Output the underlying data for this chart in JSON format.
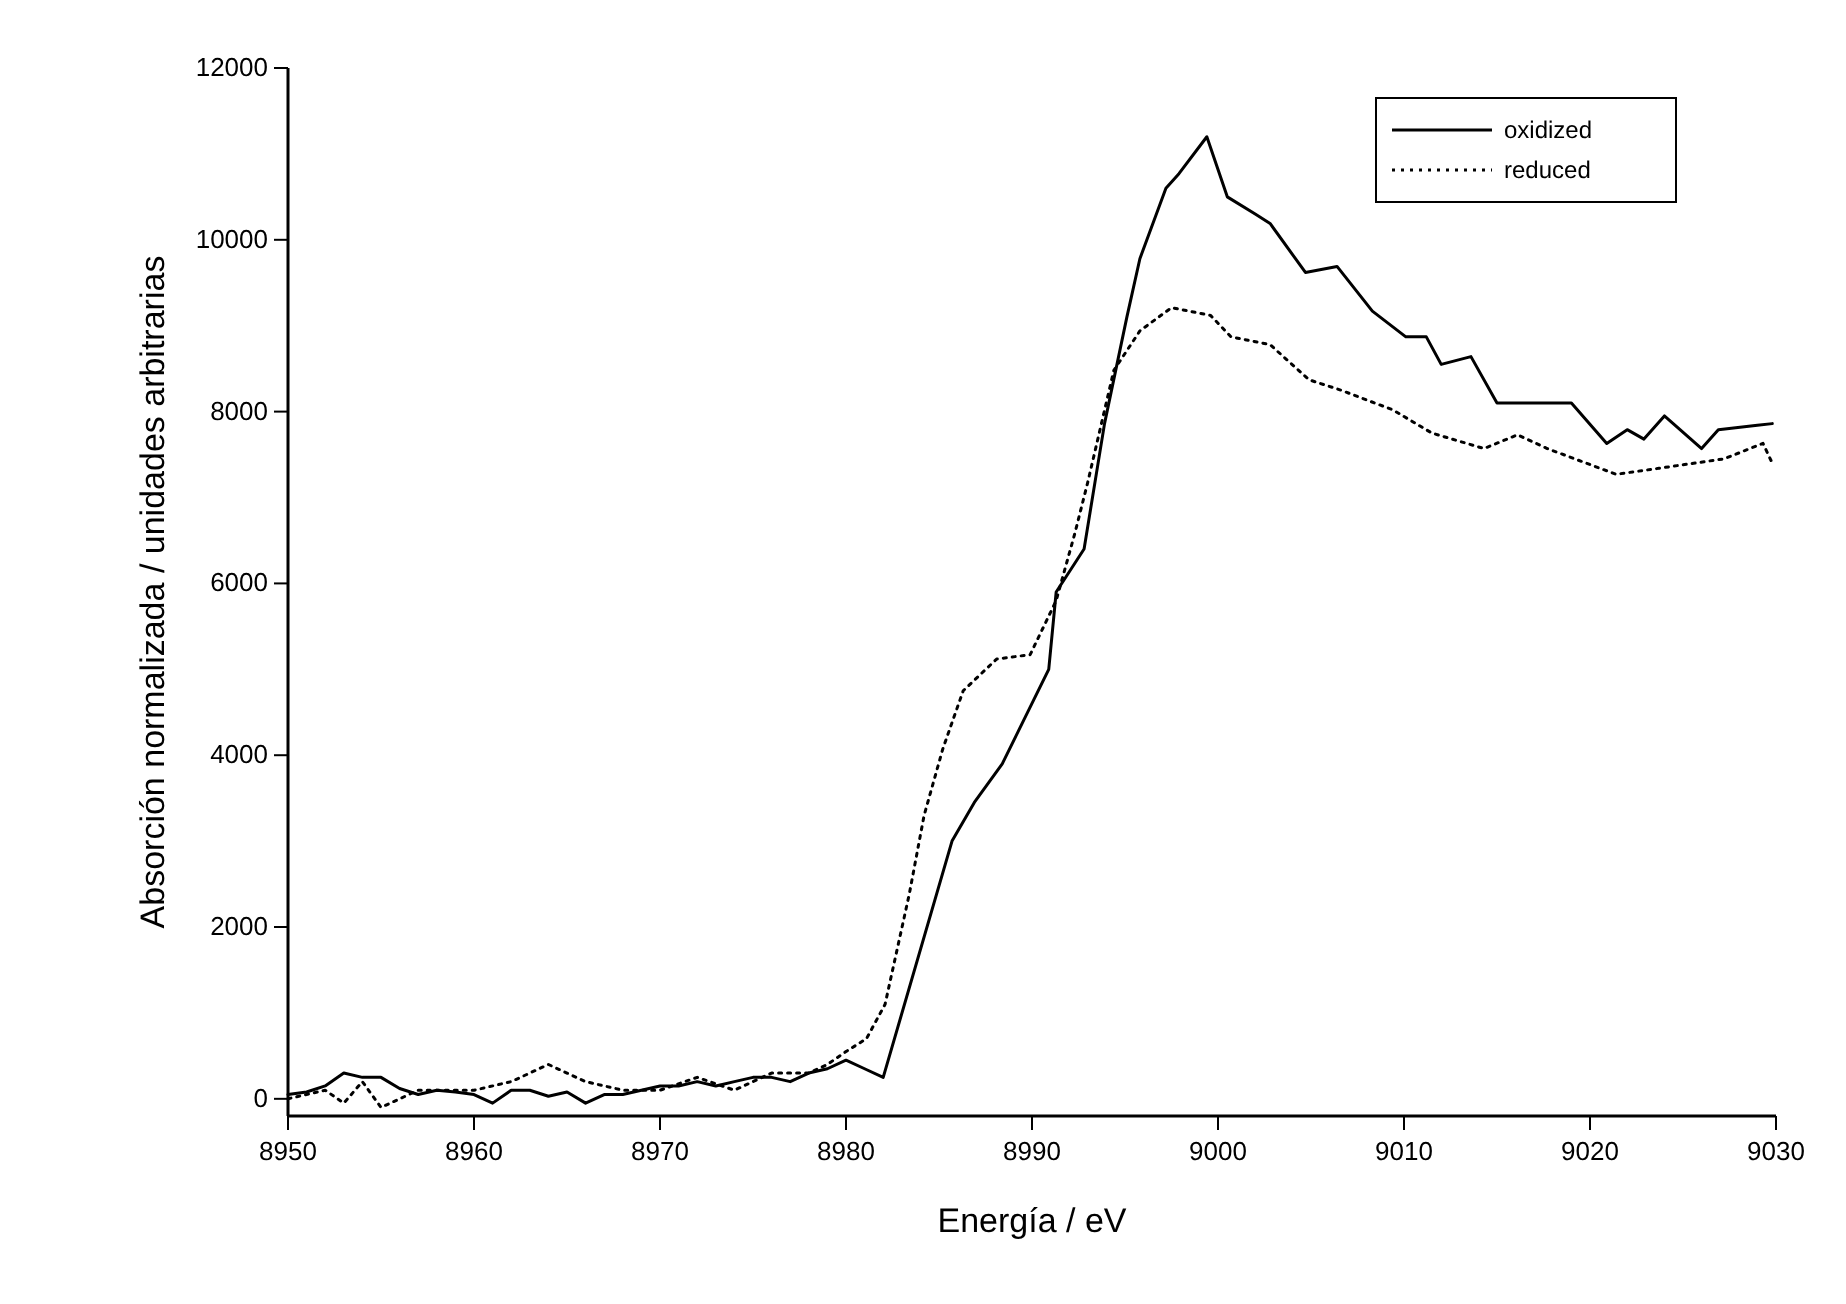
{
  "chart_data": {
    "type": "line",
    "xlabel": "Energía / eV",
    "ylabel": "Absorción normalizada / unidades arbitrarias",
    "xlim": [
      8950,
      9030
    ],
    "ylim": [
      -200,
      12000
    ],
    "xticks": [
      8950,
      8960,
      8970,
      8980,
      8990,
      9000,
      9010,
      9020,
      9030
    ],
    "yticks": [
      0,
      2000,
      4000,
      6000,
      8000,
      10000,
      12000
    ],
    "legend": "top right",
    "series": [
      {
        "name": "oxidized",
        "color": "#000000",
        "line_style": "solid",
        "x": [
          8950,
          8951,
          8952,
          8953,
          8954,
          8955,
          8956,
          8957,
          8958,
          8959,
          8960,
          8961,
          8962,
          8963,
          8964,
          8965,
          8966,
          8967,
          8968,
          8969,
          8970,
          8971,
          8972,
          8973,
          8974,
          8975,
          8976,
          8977,
          8978,
          8979,
          8980,
          8981,
          8982,
          8985.7,
          8986.9,
          8988.4,
          8990.9,
          8991.3,
          8992.8,
          8993.9,
          8995.1,
          8995.8,
          8997.2,
          8997.9,
          8999.4,
          9000.5,
          9002,
          9002.8,
          9004.7,
          9006.4,
          9008.3,
          9010.1,
          9011.2,
          9012,
          9013.6,
          9015,
          9016,
          9019,
          9020.9,
          9022,
          9022.9,
          9024,
          9026,
          9026.9,
          9029,
          9029.8
        ],
        "values": [
          50,
          80,
          150,
          300,
          250,
          250,
          120,
          50,
          100,
          80,
          50,
          -50,
          100,
          100,
          30,
          80,
          -50,
          50,
          50,
          100,
          150,
          150,
          200,
          150,
          200,
          250,
          250,
          200,
          300,
          350,
          450,
          350,
          250,
          3000,
          3450,
          3900,
          5000,
          5900,
          6400,
          7860,
          9100,
          9780,
          10600,
          10770,
          11200,
          10500,
          10300,
          10190,
          9620,
          9690,
          9170,
          8870,
          8870,
          8550,
          8640,
          8100,
          8100,
          8100,
          7630,
          7790,
          7680,
          7950,
          7570,
          7790,
          7840,
          7860
        ]
      },
      {
        "name": "reduced",
        "color": "#000000",
        "line_style": "dotted",
        "x": [
          8950,
          8952,
          8953,
          8954,
          8955,
          8957,
          8960,
          8962,
          8963,
          8964,
          8965,
          8966,
          8968,
          8970,
          8972,
          8974,
          8976,
          8978,
          8979,
          8980,
          8981.1,
          8982.1,
          8983.4,
          8984.2,
          8985.2,
          8986.3,
          8988.1,
          8989.9,
          8991.3,
          8992.3,
          8993,
          8994.4,
          8995.8,
          8997.5,
          8999.6,
          9000.7,
          9002.8,
          9004.9,
          9006.6,
          9009.4,
          9011.5,
          9014.3,
          9016.1,
          9017.7,
          9021.4,
          9023.7,
          9027.2,
          9029.3,
          9029.8
        ],
        "values": [
          0,
          100,
          -50,
          200,
          -100,
          100,
          100,
          200,
          300,
          400,
          300,
          200,
          100,
          100,
          250,
          100,
          300,
          300,
          400,
          550,
          700,
          1100,
          2380,
          3300,
          4070,
          4750,
          5120,
          5170,
          5800,
          6580,
          7180,
          8480,
          8940,
          9210,
          9120,
          8870,
          8780,
          8370,
          8250,
          8020,
          7750,
          7570,
          7730,
          7570,
          7270,
          7340,
          7450,
          7630,
          7400
        ]
      }
    ]
  }
}
